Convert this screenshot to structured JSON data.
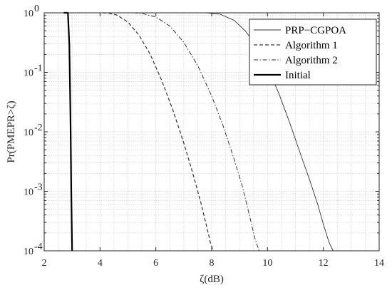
{
  "chart_data": {
    "type": "line",
    "title": "",
    "xlabel": "ζ(dB)",
    "ylabel": "Pr(PMEPR>ζ)",
    "xlim": [
      2,
      14
    ],
    "ylim": [
      0.0001,
      1
    ],
    "yscale": "log",
    "grid": true,
    "legend_position": "top-right",
    "x_ticks": [
      {
        "value": 2,
        "label": "2"
      },
      {
        "value": 4,
        "label": "4"
      },
      {
        "value": 6,
        "label": "6"
      },
      {
        "value": 8,
        "label": "8"
      },
      {
        "value": 10,
        "label": "10"
      },
      {
        "value": 12,
        "label": "12"
      },
      {
        "value": 14,
        "label": "14"
      }
    ],
    "y_ticks": [
      {
        "value": 1,
        "base": "10",
        "exp": "0"
      },
      {
        "value": 0.1,
        "base": "10",
        "exp": "-1"
      },
      {
        "value": 0.01,
        "base": "10",
        "exp": "-2"
      },
      {
        "value": 0.001,
        "base": "10",
        "exp": "-3"
      },
      {
        "value": 0.0001,
        "base": "10",
        "exp": "-4"
      }
    ],
    "series": [
      {
        "name": "PRP−CGPOA",
        "style": "solid-thin",
        "color": "#333333",
        "x": [
          5.5,
          7.8,
          8.3,
          8.8,
          9.2,
          9.6,
          10.0,
          10.4,
          10.8,
          11.2,
          11.5,
          11.8,
          12.0,
          12.2,
          12.35
        ],
        "y": [
          1,
          1,
          0.95,
          0.75,
          0.5,
          0.28,
          0.12,
          0.045,
          0.014,
          0.004,
          0.0016,
          0.0006,
          0.00028,
          0.00014,
          0.0001
        ]
      },
      {
        "name": "Algorithm 1",
        "style": "dashed",
        "color": "#333333",
        "x": [
          4.1,
          4.3,
          4.6,
          5.0,
          5.4,
          5.8,
          6.2,
          6.6,
          7.0,
          7.3,
          7.6,
          7.8,
          7.95,
          8.05
        ],
        "y": [
          1,
          0.99,
          0.92,
          0.7,
          0.42,
          0.2,
          0.075,
          0.024,
          0.0065,
          0.0022,
          0.00068,
          0.00028,
          0.00014,
          0.0001
        ]
      },
      {
        "name": "Algorithm 2",
        "style": "dashdot",
        "color": "#333333",
        "x": [
          5.2,
          5.5,
          6.0,
          6.5,
          7.0,
          7.5,
          8.0,
          8.4,
          8.8,
          9.1,
          9.35,
          9.55,
          9.7
        ],
        "y": [
          1,
          0.98,
          0.85,
          0.6,
          0.32,
          0.13,
          0.04,
          0.013,
          0.0035,
          0.0012,
          0.0004,
          0.00016,
          0.0001
        ]
      },
      {
        "name": "Initial",
        "style": "solid-thick",
        "color": "#000000",
        "x": [
          2.7,
          2.85,
          2.9,
          2.94,
          2.97,
          3.0
        ],
        "y": [
          1,
          1,
          0.3,
          0.02,
          0.001,
          0.0001
        ]
      }
    ]
  }
}
